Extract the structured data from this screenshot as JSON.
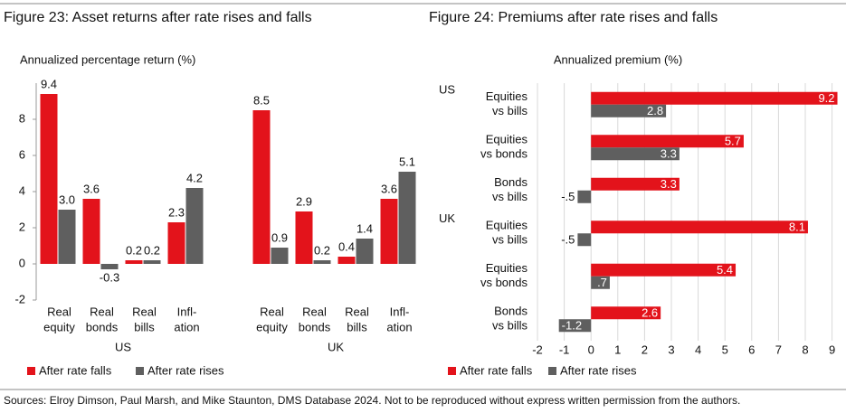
{
  "chart_data": [
    {
      "type": "bar",
      "title": "Figure 23: Asset returns after rate rises and falls",
      "y_label": "Annualized percentage return (%)",
      "groups": [
        "US",
        "UK"
      ],
      "categories": [
        [
          "Real",
          "equity"
        ],
        [
          "Real",
          "bonds"
        ],
        [
          "Real",
          "bills"
        ],
        [
          "Infl-",
          "ation"
        ],
        [
          "Real",
          "equity"
        ],
        [
          "Real",
          "bonds"
        ],
        [
          "Real",
          "bills"
        ],
        [
          "Infl-",
          "ation"
        ]
      ],
      "series": [
        {
          "name": "After rate falls",
          "color": "#e3131b",
          "values": [
            9.4,
            3.6,
            0.2,
            2.3,
            8.5,
            2.9,
            0.4,
            3.6
          ]
        },
        {
          "name": "After rate rises",
          "color": "#5f5f5f",
          "values": [
            3.0,
            -0.3,
            0.2,
            4.2,
            0.9,
            0.2,
            1.4,
            5.1
          ],
          "value_labels": [
            "3.0",
            "-0.3",
            "0.2",
            "4.2",
            "0.9",
            "0.2",
            "1.4",
            "5.1"
          ]
        }
      ],
      "ylim": [
        -2,
        10
      ],
      "yticks": [
        -2,
        0,
        2,
        4,
        6,
        8
      ],
      "grid": false
    },
    {
      "type": "hbar",
      "title": "Figure 24: Premiums after rate rises and falls",
      "x_label": "Annualized premium (%)",
      "groups": [
        "US",
        "UK"
      ],
      "categories": [
        [
          "Equities",
          "vs bills"
        ],
        [
          "Equities",
          "vs bonds"
        ],
        [
          "Bonds",
          "vs bills"
        ],
        [
          "Equities",
          "vs bills"
        ],
        [
          "Equities",
          "vs bonds"
        ],
        [
          "Bonds",
          "vs bills"
        ]
      ],
      "series": [
        {
          "name": "After rate falls",
          "color": "#e3131b",
          "values": [
            9.2,
            5.7,
            3.3,
            8.1,
            5.4,
            2.6
          ]
        },
        {
          "name": "After rate rises",
          "color": "#5f5f5f",
          "values": [
            2.8,
            3.3,
            -0.5,
            -0.5,
            0.7,
            -1.2
          ],
          "value_labels": [
            "2.8",
            "3.3",
            "-.5",
            "-.5",
            ".7",
            "-1.2"
          ]
        }
      ],
      "xlim": [
        -2,
        9.4
      ],
      "xticks": [
        -2,
        -1,
        0,
        1,
        2,
        3,
        4,
        5,
        6,
        7,
        8,
        9
      ],
      "grid": true
    }
  ],
  "footnote": "Sources: Elroy Dimson, Paul Marsh, and Mike Staunton, DMS Database 2024. Not to be reproduced without express written permission from the authors."
}
